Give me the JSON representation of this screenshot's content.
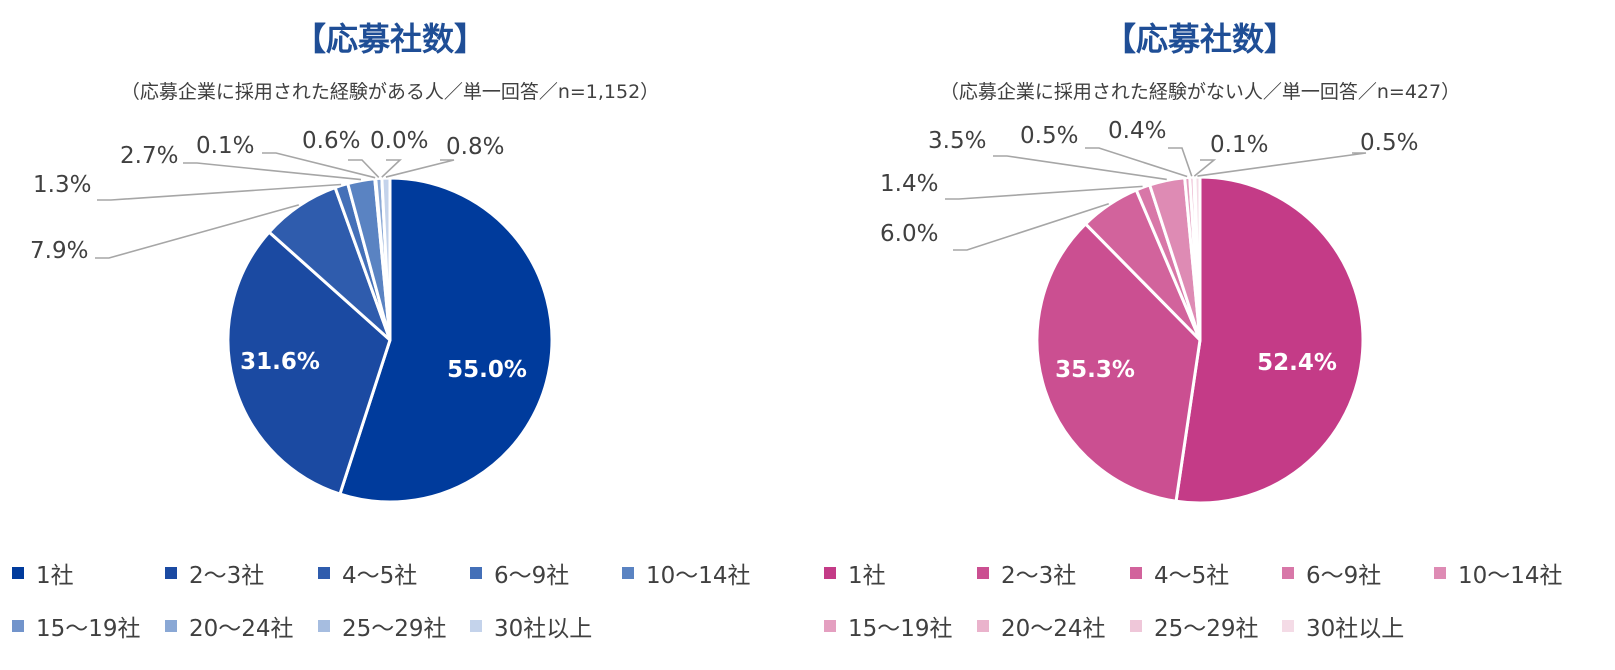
{
  "chart_data": [
    {
      "type": "pie",
      "title": "【応募社数】",
      "subtitle": "（応募企業に採用された経験がある人／単一回答／n=1,152）",
      "categories": [
        "1社",
        "2〜3社",
        "4〜5社",
        "6〜9社",
        "10〜14社",
        "15〜19社",
        "20〜24社",
        "25〜29社",
        "30社以上"
      ],
      "values": [
        55.0,
        31.6,
        7.9,
        1.3,
        2.7,
        0.1,
        0.6,
        0.0,
        0.8
      ],
      "labels": [
        "55.0%",
        "31.6%",
        "7.9%",
        "1.3%",
        "2.7%",
        "0.1%",
        "0.6%",
        "0.0%",
        "0.8%"
      ],
      "colors": [
        "#003b9c",
        "#1b4aa2",
        "#2f5cad",
        "#4470b8",
        "#5a83c2",
        "#7294cb",
        "#8aa8d5",
        "#a6bde0",
        "#c4d3eb"
      ],
      "legend": "bottom"
    },
    {
      "type": "pie",
      "title": "【応募社数】",
      "subtitle": "（応募企業に採用された経験がない人／単一回答／n=427）",
      "categories": [
        "1社",
        "2〜3社",
        "4〜5社",
        "6〜9社",
        "10〜14社",
        "15〜19社",
        "20〜24社",
        "25〜29社",
        "30社以上"
      ],
      "values": [
        52.4,
        35.3,
        6.0,
        1.4,
        3.5,
        0.5,
        0.4,
        0.1,
        0.5
      ],
      "labels": [
        "52.4%",
        "35.3%",
        "6.0%",
        "1.4%",
        "3.5%",
        "0.5%",
        "0.4%",
        "0.1%",
        "0.5%"
      ],
      "colors": [
        "#c43b87",
        "#cb4f91",
        "#d2639c",
        "#d877a8",
        "#de8bb4",
        "#e49fc0",
        "#eab3cc",
        "#efc7d9",
        "#f4dbe6"
      ],
      "legend": "bottom"
    }
  ]
}
